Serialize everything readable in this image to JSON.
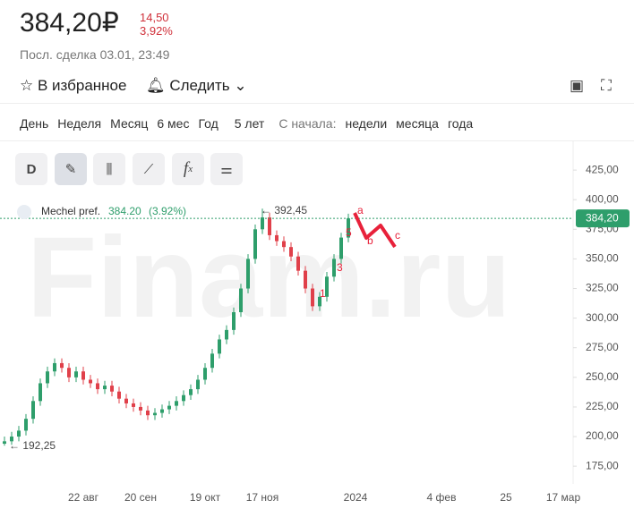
{
  "header": {
    "price": "384,20₽",
    "change_abs": "14,50",
    "change_pct": "3,92%",
    "last_trade": "Посл. сделка 03.01, 23:49",
    "favorite": "В избранное",
    "follow": "Следить"
  },
  "periods": {
    "items": [
      "День",
      "Неделя",
      "Месяц",
      "6 мес",
      "Год",
      "5 лет"
    ],
    "since_label": "С начала:",
    "since_items": [
      "недели",
      "месяца",
      "года"
    ]
  },
  "toolbar": {
    "interval": "D",
    "formula": "f",
    "formula_sub": "x"
  },
  "chart_data": {
    "type": "candlestick",
    "watermark": "Finam.ru",
    "legend": {
      "name": "Mechel pref.",
      "value": "384.20",
      "change": "(3.92%)"
    },
    "last_price": {
      "value": 384.2,
      "label": "384,20"
    },
    "annotations": [
      {
        "text": "← 392,45"
      },
      {
        "text": "← 192,25"
      },
      {
        "text": "a"
      },
      {
        "text": "b"
      },
      {
        "text": "c"
      },
      {
        "text": "1"
      },
      {
        "text": "3"
      },
      {
        "text": "5"
      }
    ],
    "categories": [
      null,
      null,
      null,
      null,
      null,
      null,
      null,
      null,
      null,
      null,
      null,
      "22 авг",
      null,
      null,
      null,
      null,
      null,
      null,
      null,
      "20 сен",
      null,
      null,
      null,
      null,
      null,
      null,
      null,
      null,
      "19 окт",
      null,
      null,
      null,
      null,
      null,
      null,
      null,
      "17 ноя",
      null,
      null,
      null,
      null,
      null,
      null,
      null,
      null,
      null,
      null,
      null,
      null,
      "2024",
      null,
      null,
      null,
      null,
      null,
      null,
      null,
      null,
      null,
      null,
      null,
      "4 фев",
      null,
      null,
      null,
      null,
      null,
      null,
      null,
      null,
      "25",
      null,
      null,
      null,
      null,
      null,
      null,
      null,
      "17 мар",
      null
    ],
    "open": [
      194,
      196,
      200,
      205,
      215,
      230,
      245,
      255,
      262,
      258,
      250,
      255,
      248,
      245,
      240,
      243,
      238,
      232,
      228,
      225,
      222,
      218,
      220,
      223,
      226,
      230,
      235,
      240,
      248,
      258,
      270,
      282,
      290,
      305,
      325,
      350,
      375,
      385,
      370,
      365,
      360,
      352,
      340,
      325,
      310,
      318,
      335,
      350,
      368,
      null,
      null,
      null,
      null,
      null,
      null,
      null,
      null,
      null,
      null,
      null,
      null,
      null,
      null,
      null,
      null,
      null,
      null,
      null,
      null,
      null,
      null,
      null,
      null,
      null,
      null,
      null,
      null,
      null,
      null,
      null
    ],
    "high": [
      200,
      204,
      209,
      219,
      234,
      249,
      259,
      266,
      266,
      262,
      259,
      259,
      252,
      249,
      247,
      247,
      242,
      236,
      232,
      229,
      226,
      224,
      227,
      230,
      234,
      239,
      244,
      252,
      262,
      274,
      286,
      294,
      309,
      329,
      354,
      379,
      392.45,
      389,
      374,
      369,
      364,
      356,
      344,
      329,
      322,
      339,
      354,
      372,
      388.2,
      null,
      null,
      null,
      null,
      null,
      null,
      null,
      null,
      null,
      null,
      null,
      null,
      null,
      null,
      null,
      null,
      null,
      null,
      null,
      null,
      null,
      null,
      null,
      null,
      null,
      null,
      null,
      null,
      null,
      null,
      null
    ],
    "low": [
      192.25,
      193,
      196,
      201,
      211,
      226,
      241,
      251,
      254,
      246,
      246,
      244,
      241,
      236,
      236,
      234,
      228,
      224,
      221,
      218,
      214,
      214,
      216,
      219,
      222,
      226,
      231,
      236,
      244,
      254,
      266,
      278,
      286,
      301,
      321,
      346,
      371,
      366,
      361,
      356,
      348,
      336,
      321,
      306,
      306,
      314,
      331,
      346,
      364,
      null,
      null,
      null,
      null,
      null,
      null,
      null,
      null,
      null,
      null,
      null,
      null,
      null,
      null,
      null,
      null,
      null,
      null,
      null,
      null,
      null,
      null,
      null,
      null,
      null,
      null,
      null,
      null,
      null,
      null,
      null
    ],
    "close": [
      196,
      200,
      205,
      215,
      230,
      245,
      255,
      262,
      258,
      250,
      255,
      248,
      245,
      240,
      243,
      238,
      232,
      228,
      225,
      222,
      218,
      220,
      223,
      226,
      230,
      235,
      240,
      248,
      258,
      270,
      282,
      290,
      305,
      325,
      350,
      375,
      385,
      370,
      365,
      360,
      352,
      340,
      325,
      310,
      318,
      335,
      350,
      368,
      384.2,
      null,
      null,
      null,
      null,
      null,
      null,
      null,
      null,
      null,
      null,
      null,
      null,
      null,
      null,
      null,
      null,
      null,
      null,
      null,
      null,
      null,
      null,
      null,
      null,
      null,
      null,
      null,
      null,
      null,
      null,
      null
    ],
    "up_color": "#2e9e6b",
    "down_color": "#e0404a",
    "ylim": [
      160,
      450
    ],
    "yticks": [
      {
        "value": 175,
        "label": "175,00"
      },
      {
        "value": 200,
        "label": "200,00"
      },
      {
        "value": 225,
        "label": "225,00"
      },
      {
        "value": 250,
        "label": "250,00"
      },
      {
        "value": 275,
        "label": "275,00"
      },
      {
        "value": 300,
        "label": "300,00"
      },
      {
        "value": 325,
        "label": "325,00"
      },
      {
        "value": 350,
        "label": "350,00"
      },
      {
        "value": 375,
        "label": "375,00"
      },
      {
        "value": 400,
        "label": "400,00"
      },
      {
        "value": 425,
        "label": "425,00"
      }
    ]
  }
}
